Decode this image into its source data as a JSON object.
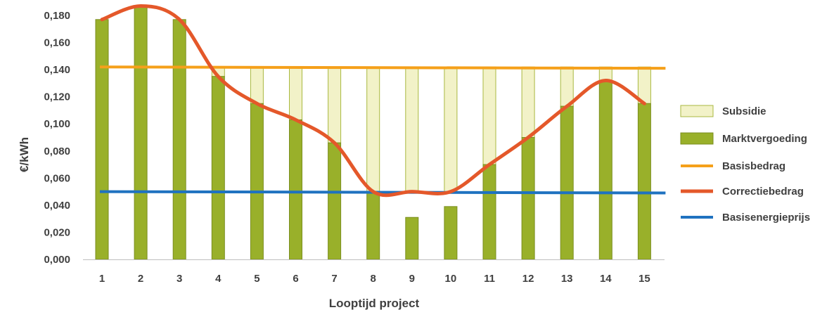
{
  "chart_data": {
    "type": "bar",
    "xlabel": "Looptijd project",
    "ylabel": "€/kWh",
    "ylim": [
      0,
      0.18
    ],
    "yticks": [
      "0,000",
      "0,020",
      "0,040",
      "0,060",
      "0,080",
      "0,100",
      "0,120",
      "0,140",
      "0,160",
      "0,180"
    ],
    "categories": [
      "1",
      "2",
      "3",
      "4",
      "5",
      "6",
      "7",
      "8",
      "9",
      "10",
      "11",
      "12",
      "13",
      "14",
      "15"
    ],
    "series": [
      {
        "name": "Subsidie",
        "kind": "stacked-bar",
        "color": "#f2f2c8",
        "border": "#a9b840",
        "values": [
          0,
          0,
          0,
          0.007,
          0.027,
          0.039,
          0.056,
          0.092,
          0.092,
          0.092,
          0.072,
          0.052,
          0.029,
          0.01,
          0.027
        ]
      },
      {
        "name": "Marktvergoeding",
        "kind": "bar",
        "color": "#99b02a",
        "border": "#7a8e1f",
        "values": [
          0.177,
          0.187,
          0.177,
          0.135,
          0.115,
          0.103,
          0.086,
          0.05,
          0.031,
          0.039,
          0.07,
          0.09,
          0.113,
          0.132,
          0.115
        ]
      },
      {
        "name": "Basisbedrag",
        "kind": "line",
        "color": "#f5a01a",
        "values": [
          0.142,
          0.142,
          0.142,
          0.142,
          0.142,
          0.142,
          0.142,
          0.142,
          0.142,
          0.142,
          0.142,
          0.142,
          0.142,
          0.142,
          0.141
        ]
      },
      {
        "name": "Correctiebedrag",
        "kind": "smooth-line",
        "color": "#e4582a",
        "values": [
          0.177,
          0.187,
          0.177,
          0.135,
          0.115,
          0.103,
          0.086,
          0.05,
          0.05,
          0.05,
          0.07,
          0.09,
          0.113,
          0.132,
          0.115
        ]
      },
      {
        "name": "Basisenergieprijs",
        "kind": "line",
        "color": "#1f72c0",
        "values": [
          0.05,
          0.05,
          0.05,
          0.05,
          0.05,
          0.05,
          0.05,
          0.05,
          0.05,
          0.05,
          0.05,
          0.05,
          0.05,
          0.049,
          0.049
        ]
      }
    ],
    "legend_position": "right",
    "grid": false
  }
}
